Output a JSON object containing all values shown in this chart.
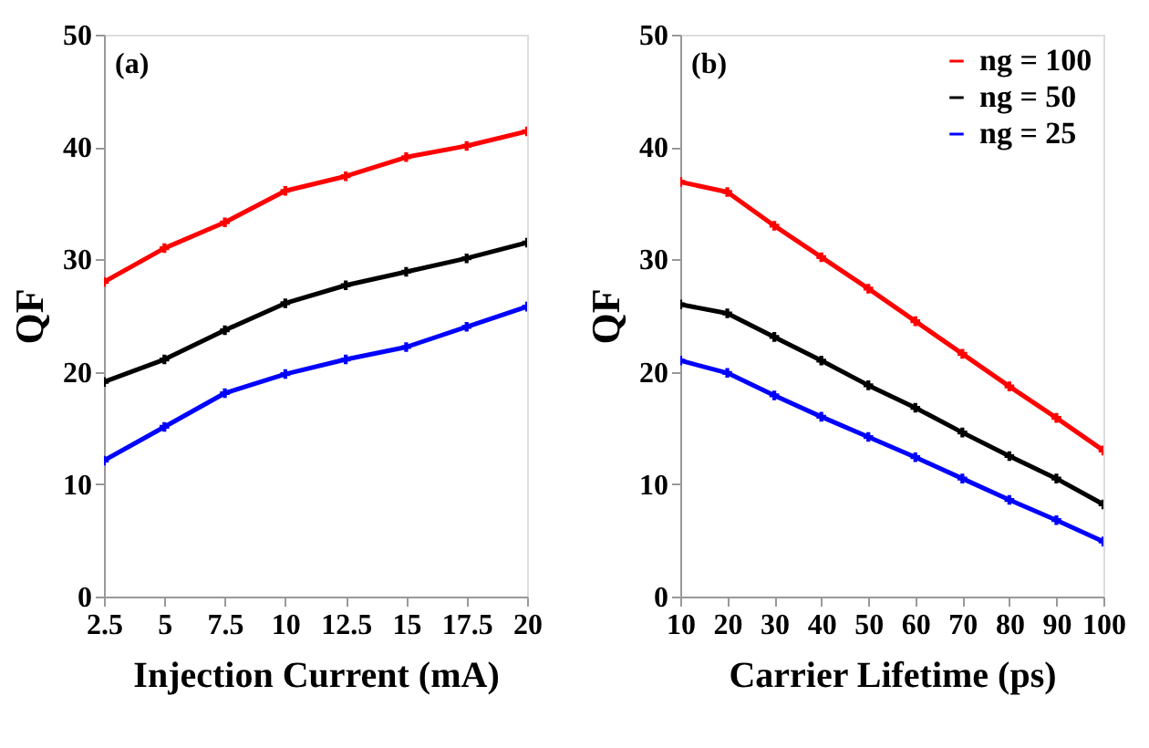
{
  "chart_data": [
    {
      "type": "line",
      "xlabel": "Injection Current (mA)",
      "ylabel": "QF",
      "annotations": [
        "(a)"
      ],
      "x": [
        2.5,
        5,
        7.5,
        10,
        12.5,
        15,
        17.5,
        20
      ],
      "xlim": [
        2.5,
        20
      ],
      "xticks": [
        2.5,
        5,
        7.5,
        10,
        12.5,
        15,
        17.5,
        20
      ],
      "ylim": [
        0,
        50
      ],
      "yticks": [
        0,
        10,
        20,
        30,
        40,
        50
      ],
      "grid": false,
      "marker": "cross",
      "line_style": "solid",
      "series": [
        {
          "color": "#ff0000",
          "values": [
            28.0,
            31.0,
            33.3,
            36.1,
            37.4,
            39.1,
            40.1,
            41.4
          ]
        },
        {
          "color": "#000000",
          "values": [
            19.1,
            21.1,
            23.7,
            26.1,
            27.7,
            28.9,
            30.1,
            31.5
          ]
        },
        {
          "color": "#0000ff",
          "values": [
            12.1,
            15.1,
            18.1,
            19.8,
            21.1,
            22.2,
            24.0,
            25.8
          ]
        }
      ]
    },
    {
      "type": "line",
      "xlabel": "Carrier Lifetime (ps)",
      "ylabel": "QF",
      "annotations": [
        "(b)"
      ],
      "x": [
        10,
        20,
        30,
        40,
        50,
        60,
        70,
        80,
        90,
        100
      ],
      "xlim": [
        10,
        100
      ],
      "xticks": [
        10,
        20,
        30,
        40,
        50,
        60,
        70,
        80,
        90,
        100
      ],
      "ylim": [
        0,
        50
      ],
      "yticks": [
        0,
        10,
        20,
        30,
        40,
        50
      ],
      "grid": false,
      "legend": "top right",
      "marker": "cross",
      "line_style": "solid",
      "series": [
        {
          "name": "ng = 100",
          "color": "#ff0000",
          "values": [
            36.9,
            36.0,
            33.0,
            30.2,
            27.4,
            24.5,
            21.6,
            18.7,
            15.9,
            13.0
          ]
        },
        {
          "name": "ng = 50",
          "color": "#000000",
          "values": [
            26.0,
            25.2,
            23.1,
            21.0,
            18.8,
            16.8,
            14.6,
            12.5,
            10.5,
            8.2
          ]
        },
        {
          "name": "ng = 25",
          "color": "#0000ff",
          "values": [
            21.0,
            19.9,
            17.9,
            16.0,
            14.2,
            12.4,
            10.5,
            8.6,
            6.8,
            4.9
          ]
        }
      ]
    }
  ]
}
